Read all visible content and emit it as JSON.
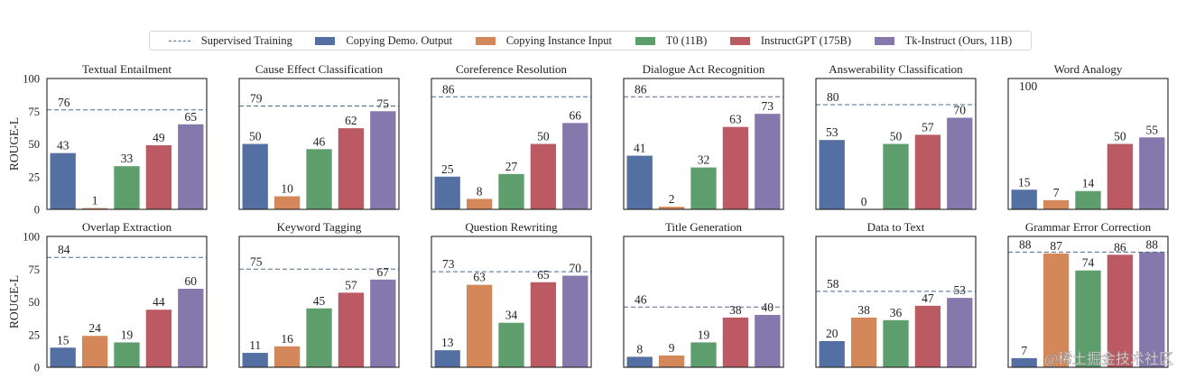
{
  "chart_data": {
    "type": "bar",
    "layout": "grid 2 rows x 6 columns",
    "legend_placement": "top-center",
    "ylabel": "ROUGE-L",
    "ylim": [
      0,
      100
    ],
    "yticks": [
      "0",
      "25",
      "50",
      "75",
      "100"
    ],
    "reference_line": {
      "name": "Supervised Training",
      "style": "dashed",
      "color": "#4a6a8f"
    },
    "series": [
      {
        "name": "Copying Demo. Output",
        "color": "#5470a2"
      },
      {
        "name": "Copying Instance Input",
        "color": "#d4885a"
      },
      {
        "name": "T0 (11B)",
        "color": "#5d9e6c"
      },
      {
        "name": "InstructGPT (175B)",
        "color": "#bb5a62"
      },
      {
        "name": "Tk-Instruct (Ours, 11B)",
        "color": "#8478ac"
      }
    ],
    "panels": [
      {
        "title": "Textual Entailment",
        "supervised": 76,
        "values": [
          43,
          1,
          33,
          49,
          65
        ],
        "labels": [
          "43",
          "1",
          "33",
          "49",
          "65"
        ],
        "sup_label": "76"
      },
      {
        "title": "Cause Effect Classification",
        "supervised": 79,
        "values": [
          50,
          10,
          46,
          62,
          75
        ],
        "labels": [
          "50",
          "10",
          "46",
          "62",
          "75"
        ],
        "sup_label": "79"
      },
      {
        "title": "Coreference Resolution",
        "supervised": 86,
        "values": [
          25,
          8,
          27,
          50,
          66
        ],
        "labels": [
          "25",
          "8",
          "27",
          "50",
          "66"
        ],
        "sup_label": "86"
      },
      {
        "title": "Dialogue Act Recognition",
        "supervised": 86,
        "values": [
          41,
          2,
          32,
          63,
          73
        ],
        "labels": [
          "41",
          "2",
          "32",
          "63",
          "73"
        ],
        "sup_label": "86"
      },
      {
        "title": "Answerability Classification",
        "supervised": 80,
        "values": [
          53,
          0,
          50,
          57,
          70
        ],
        "labels": [
          "53",
          "0",
          "50",
          "57",
          "70"
        ],
        "sup_label": "80"
      },
      {
        "title": "Word Analogy",
        "supervised": 100,
        "values": [
          15,
          7,
          14,
          50,
          55
        ],
        "labels": [
          "15",
          "7",
          "14",
          "50",
          "55"
        ],
        "sup_label": "100"
      },
      {
        "title": "Overlap Extraction",
        "supervised": 84,
        "values": [
          15,
          24,
          19,
          44,
          60
        ],
        "labels": [
          "15",
          "24",
          "19",
          "44",
          "60"
        ],
        "sup_label": "84"
      },
      {
        "title": "Keyword Tagging",
        "supervised": 75,
        "values": [
          11,
          16,
          45,
          57,
          67
        ],
        "labels": [
          "11",
          "16",
          "45",
          "57",
          "67"
        ],
        "sup_label": "75"
      },
      {
        "title": "Question Rewriting",
        "supervised": 73,
        "values": [
          13,
          63,
          34,
          65,
          70
        ],
        "labels": [
          "13",
          "63",
          "34",
          "65",
          "70"
        ],
        "sup_label": "73"
      },
      {
        "title": "Title Generation",
        "supervised": 46,
        "values": [
          8,
          9,
          19,
          38,
          40
        ],
        "labels": [
          "8",
          "9",
          "19",
          "38",
          "40"
        ],
        "sup_label": "46"
      },
      {
        "title": "Data to Text",
        "supervised": 58,
        "values": [
          20,
          38,
          36,
          47,
          53
        ],
        "labels": [
          "20",
          "38",
          "36",
          "47",
          "53"
        ],
        "sup_label": "58"
      },
      {
        "title": "Grammar Error Correction",
        "supervised": 88,
        "values": [
          7,
          87,
          74,
          86,
          88
        ],
        "labels": [
          "7",
          "87",
          "74",
          "86",
          "88"
        ],
        "sup_label": "88"
      }
    ]
  },
  "legend": {
    "items": [
      {
        "label": "Supervised Training",
        "kind": "dashed-line",
        "color": "#4a6a8f"
      },
      {
        "label": "Copying Demo. Output",
        "kind": "box",
        "color": "#5470a2"
      },
      {
        "label": "Copying Instance Input",
        "kind": "box",
        "color": "#d4885a"
      },
      {
        "label": "T0 (11B)",
        "kind": "box",
        "color": "#5d9e6c"
      },
      {
        "label": "InstructGPT (175B)",
        "kind": "box",
        "color": "#bb5a62"
      },
      {
        "label": "Tk-Instruct (Ours, 11B)",
        "kind": "box",
        "color": "#8478ac"
      }
    ]
  },
  "watermark": "@稀土掘金技术社区"
}
